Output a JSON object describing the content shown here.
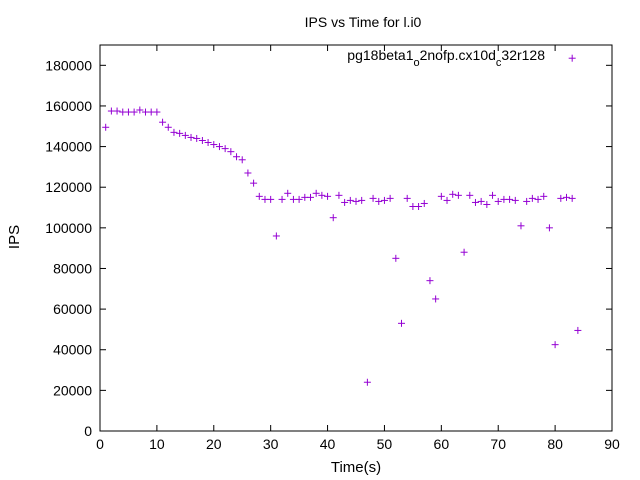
{
  "chart_data": {
    "type": "scatter",
    "title": "IPS vs Time for l.i0",
    "xlabel": "Time(s)",
    "ylabel": "IPS",
    "xlim": [
      0,
      90
    ],
    "ylim": [
      0,
      190000
    ],
    "xticks": [
      0,
      10,
      20,
      30,
      40,
      50,
      60,
      70,
      80,
      90
    ],
    "yticks": [
      0,
      20000,
      40000,
      60000,
      80000,
      100000,
      120000,
      140000,
      160000,
      180000
    ],
    "grid": false,
    "legend": "top-right",
    "marker": "plus",
    "color": "#9400D3",
    "series": [
      {
        "name": "pg18beta1_o2nofp.cx10d_c32r128",
        "name_parts": {
          "a": "pg18beta1",
          "b": "o",
          "c": "2nofp.cx10d",
          "d": "c",
          "e": "32r128"
        },
        "x": [
          1,
          2,
          3,
          4,
          5,
          6,
          7,
          8,
          9,
          10,
          11,
          12,
          13,
          14,
          15,
          16,
          17,
          18,
          19,
          20,
          21,
          22,
          23,
          24,
          25,
          26,
          27,
          28,
          29,
          30,
          31,
          32,
          33,
          34,
          35,
          36,
          37,
          38,
          39,
          40,
          41,
          42,
          43,
          44,
          45,
          46,
          47,
          48,
          49,
          50,
          51,
          52,
          53,
          54,
          55,
          56,
          57,
          58,
          59,
          60,
          61,
          62,
          63,
          64,
          65,
          66,
          67,
          68,
          69,
          70,
          71,
          72,
          73,
          74,
          75,
          76,
          77,
          78,
          79,
          80,
          81,
          82,
          83,
          84
        ],
        "y": [
          149500,
          157500,
          157500,
          157000,
          157000,
          157000,
          158000,
          157000,
          157000,
          157000,
          152000,
          149500,
          147000,
          146500,
          145500,
          144500,
          144000,
          143000,
          142000,
          141000,
          140000,
          139000,
          137500,
          135000,
          133500,
          127000,
          122000,
          115500,
          114000,
          114000,
          96000,
          114000,
          117000,
          114000,
          114000,
          115000,
          115000,
          117000,
          116000,
          115500,
          105000,
          116000,
          112500,
          113500,
          113000,
          113500,
          24000,
          114500,
          113000,
          113500,
          114500,
          85000,
          53000,
          114500,
          110500,
          110500,
          112000,
          74000,
          65000,
          115500,
          113500,
          116500,
          116000,
          88000,
          116000,
          112500,
          113000,
          111500,
          116000,
          113000,
          114000,
          114000,
          113500,
          101000,
          113000,
          114500,
          114000,
          115500,
          100000,
          42500,
          114500,
          115000,
          114500,
          49500
        ]
      }
    ],
    "outlier_top_right": {
      "x": 83,
      "y": 183500
    }
  }
}
